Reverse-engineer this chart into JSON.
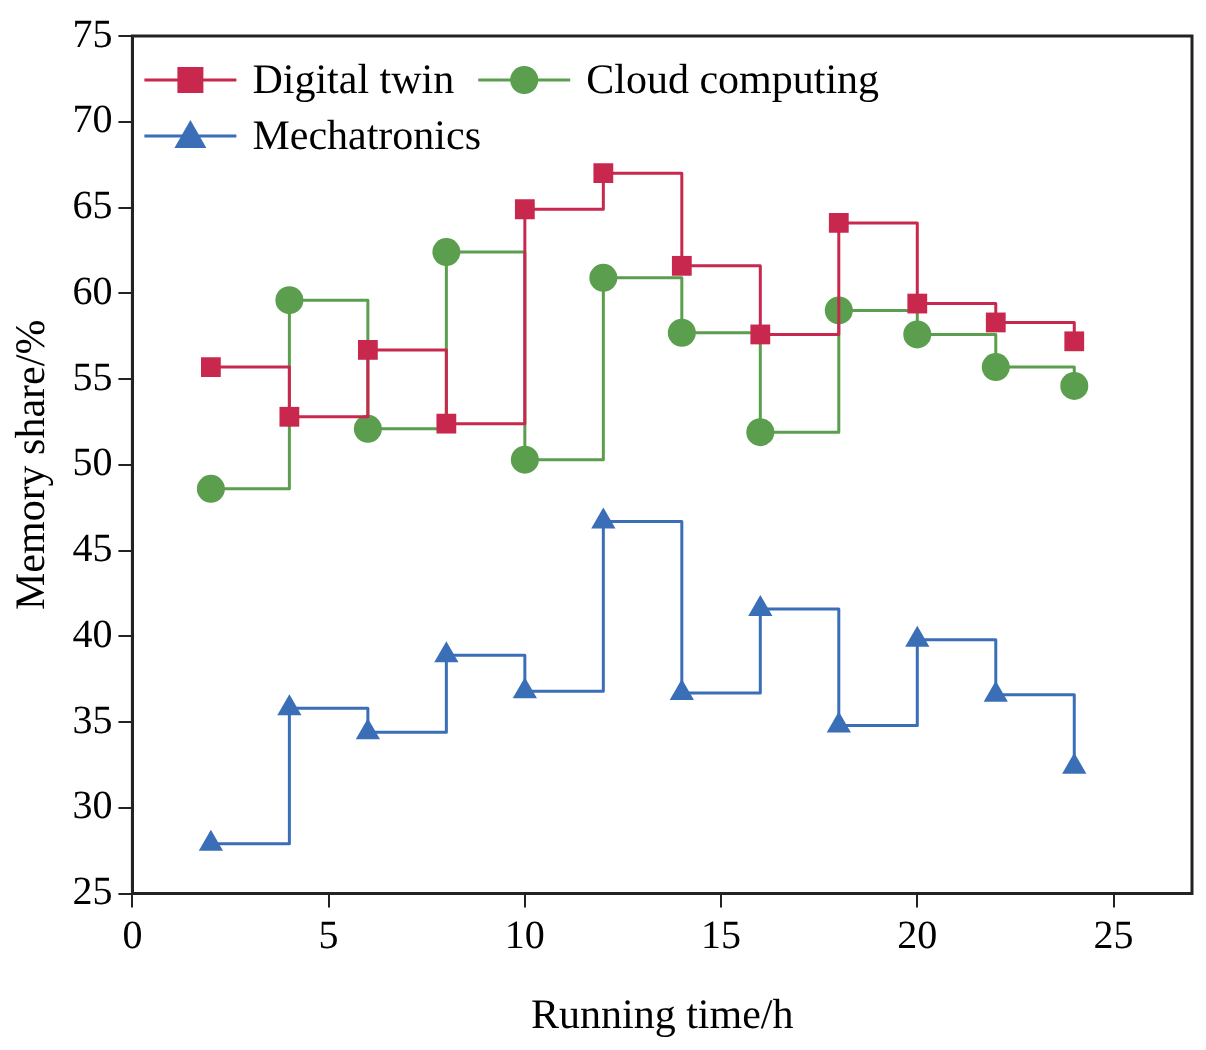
{
  "chart_data": {
    "type": "step",
    "xlabel": "Running time/h",
    "ylabel": "Memory share/%",
    "x": [
      2,
      4,
      6,
      8,
      10,
      12,
      14,
      16,
      18,
      20,
      22,
      24
    ],
    "series": [
      {
        "name": "Digital twin",
        "color": "#c8284e",
        "marker": "square",
        "values": [
          55.7,
          52.8,
          56.7,
          52.4,
          64.9,
          67,
          61.6,
          57.6,
          64.1,
          59.4,
          58.3,
          57.2
        ]
      },
      {
        "name": "Cloud computing",
        "color": "#5a9e4e",
        "marker": "circle",
        "values": [
          48.6,
          59.6,
          52.1,
          62.4,
          50.3,
          60.9,
          57.7,
          51.9,
          59,
          57.6,
          55.7,
          54.6
        ]
      },
      {
        "name": "Mechatronics",
        "color": "#3a6fb8",
        "marker": "triangle",
        "values": [
          27.9,
          35.8,
          34.4,
          38.9,
          36.8,
          46.7,
          36.7,
          41.6,
          34.8,
          39.8,
          36.6,
          32.4
        ]
      }
    ],
    "xlim": [
      0,
      27
    ],
    "xticks": [
      0,
      5,
      10,
      15,
      20,
      25
    ],
    "ylim": [
      25,
      75
    ],
    "yticks": [
      25,
      30,
      35,
      40,
      45,
      50,
      55,
      60,
      65,
      70,
      75
    ],
    "grid": false,
    "legend": "top left"
  }
}
